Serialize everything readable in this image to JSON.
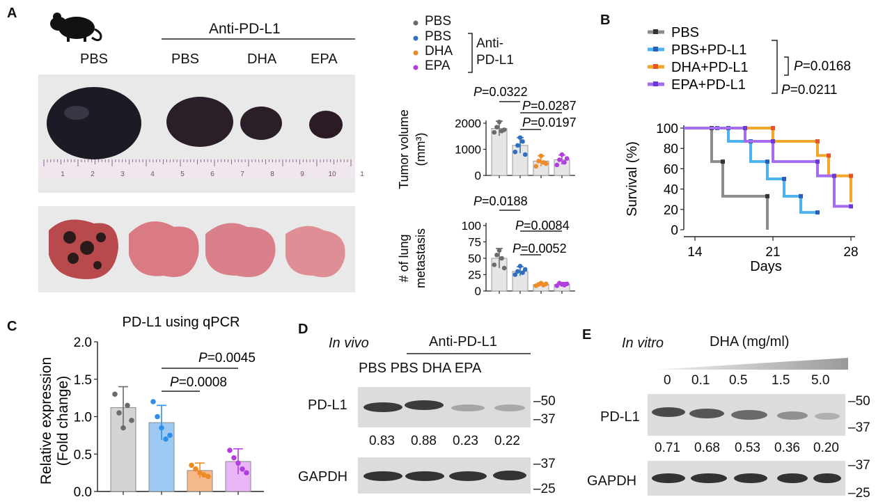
{
  "panels": {
    "a": "A",
    "b": "B",
    "c": "C",
    "d": "D",
    "e": "E"
  },
  "panelA": {
    "group_header": "Anti-PD-L1",
    "photo_labels": [
      "PBS",
      "PBS",
      "DHA",
      "EPA"
    ],
    "ruler_numbers": [
      "1",
      "2",
      "3",
      "4",
      "5",
      "6",
      "7",
      "8",
      "9",
      "10",
      "1"
    ],
    "legend": {
      "items": [
        "PBS",
        "PBS",
        "DHA",
        "EPA"
      ],
      "bracket_label_line1": "Anti-",
      "bracket_label_line2": "PD-L1"
    },
    "colors": [
      "#6b6b6b",
      "#2f6fc0",
      "#f08a24",
      "#b23ee0"
    ]
  },
  "chart_data": [
    {
      "id": "tumor-volume",
      "type": "bar",
      "categories": [
        "PBS",
        "PBS+PD-L1",
        "DHA+PD-L1",
        "EPA+PD-L1"
      ],
      "values": [
        1800,
        1150,
        550,
        600
      ],
      "errors": [
        280,
        300,
        200,
        180
      ],
      "ylabel_line1": "Tumor volume",
      "ylabel_line2": "(mm³)",
      "ylim": [
        0,
        2000
      ],
      "yticks": [
        "0",
        "1000",
        "2000"
      ],
      "points": [
        [
          1650,
          1850,
          2050,
          1700,
          1750
        ],
        [
          900,
          1150,
          1450,
          1300,
          800
        ],
        [
          350,
          550,
          750,
          500,
          450
        ],
        [
          400,
          600,
          800,
          500,
          650
        ]
      ],
      "annotations": [
        "P=0.0322",
        "P=0.0287",
        "P=0.0197"
      ]
    },
    {
      "id": "lung-metastasis",
      "type": "bar",
      "categories": [
        "PBS",
        "PBS+PD-L1",
        "DHA+PD-L1",
        "EPA+PD-L1"
      ],
      "values": [
        50,
        30,
        10,
        10
      ],
      "errors": [
        15,
        7,
        2,
        3
      ],
      "ylabel_line1": "# of lung",
      "ylabel_line2": "metastasis",
      "ylim": [
        0,
        100
      ],
      "yticks": [
        "0",
        "25",
        "50",
        "75",
        "100"
      ],
      "points": [
        [
          40,
          55,
          62,
          50,
          35
        ],
        [
          25,
          30,
          38,
          28,
          33
        ],
        [
          8,
          10,
          12,
          9,
          11
        ],
        [
          8,
          12,
          10,
          9,
          11
        ]
      ],
      "annotations": [
        "P=0.0188",
        "P=0.0084",
        "P=0.0052"
      ]
    },
    {
      "id": "survival",
      "type": "line",
      "xlabel": "Days",
      "ylabel": "Survival (%)",
      "xlim": [
        13,
        28
      ],
      "ylim": [
        0,
        100
      ],
      "xticks": [
        "14",
        "21",
        "28"
      ],
      "yticks": [
        "0",
        "20",
        "40",
        "60",
        "80",
        "100"
      ],
      "series": [
        {
          "name": "PBS",
          "color": "#8c8c8c",
          "steps": [
            [
              13,
              100
            ],
            [
              15.5,
              100
            ],
            [
              15.5,
              67
            ],
            [
              16.5,
              67
            ],
            [
              16.5,
              33
            ],
            [
              20.5,
              33
            ],
            [
              20.5,
              0
            ]
          ]
        },
        {
          "name": "PBS+PD-L1",
          "color": "#4db3f0",
          "steps": [
            [
              13,
              100
            ],
            [
              16,
              100
            ],
            [
              16,
              100
            ],
            [
              17,
              100
            ],
            [
              17,
              87
            ],
            [
              19,
              87
            ],
            [
              19,
              67
            ],
            [
              20.5,
              67
            ],
            [
              20.5,
              50
            ],
            [
              22,
              50
            ],
            [
              22,
              33
            ],
            [
              23.5,
              33
            ],
            [
              23.5,
              17
            ],
            [
              25,
              17
            ]
          ]
        },
        {
          "name": "DHA+PD-L1",
          "color": "#f2a72a",
          "steps": [
            [
              13,
              100
            ],
            [
              21,
              100
            ],
            [
              21,
              87
            ],
            [
              25,
              87
            ],
            [
              25,
              73
            ],
            [
              26,
              73
            ],
            [
              26,
              53
            ],
            [
              28,
              53
            ],
            [
              28,
              27
            ]
          ]
        },
        {
          "name": "EPA+PD-L1",
          "color": "#a56cf2",
          "steps": [
            [
              13,
              100
            ],
            [
              18.5,
              100
            ],
            [
              18.5,
              87
            ],
            [
              21,
              87
            ],
            [
              21,
              67
            ],
            [
              25,
              67
            ],
            [
              25,
              53
            ],
            [
              26.5,
              53
            ],
            [
              26.5,
              23
            ],
            [
              28,
              23
            ]
          ]
        }
      ],
      "annotations": [
        "P=0.0168",
        "P=0.0211"
      ]
    },
    {
      "id": "qpcr",
      "type": "bar",
      "title": "PD-L1 using qPCR",
      "categories": [
        "PBS",
        "PBS+PD-L1",
        "DHA+PD-L1",
        "EPA+PD-L1"
      ],
      "values": [
        1.12,
        0.92,
        0.28,
        0.4
      ],
      "errors": [
        0.28,
        0.23,
        0.1,
        0.17
      ],
      "ylabel_line1": "Relative expression",
      "ylabel_line2": "(Fold change)",
      "ylim": [
        0,
        2.0
      ],
      "yticks": [
        "0.0",
        "0.5",
        "1.0",
        "1.5",
        "2.0"
      ],
      "colors": [
        "#d4d4d4",
        "#9ccaf5",
        "#f5b98c",
        "#eab6f7"
      ],
      "dotColors": [
        "#6b6b6b",
        "#2f8ee8",
        "#f08a24",
        "#b23ee0"
      ],
      "points": [
        [
          1.3,
          1.05,
          0.85,
          1.15,
          0.95
        ],
        [
          1.2,
          1.0,
          0.85,
          0.7,
          0.75
        ],
        [
          0.35,
          0.3,
          0.25,
          0.22,
          0.2
        ],
        [
          0.55,
          0.45,
          0.38,
          0.3,
          0.25
        ]
      ],
      "annotations": [
        "P=0.0045",
        "P=0.0008"
      ]
    }
  ],
  "panelB": {
    "legend": [
      "PBS",
      "PBS+PD-L1",
      "DHA+PD-L1",
      "EPA+PD-L1"
    ]
  },
  "panelD": {
    "condition": "In vivo",
    "group_header": "Anti-PD-L1",
    "lane_labels": "PBS PBS DHA EPA",
    "row1_label": "PD-L1",
    "row2_label": "GAPDH",
    "markers_row1": [
      "–50",
      "–37"
    ],
    "markers_row2": [
      "–37",
      "–25"
    ],
    "values": [
      "0.83",
      "0.88",
      "0.23",
      "0.22"
    ]
  },
  "panelE": {
    "condition": "In vitro",
    "treatment": "DHA (mg/ml)",
    "doses": [
      "0",
      "0.1",
      "0.5",
      "1.5",
      "5.0"
    ],
    "row1_label": "PD-L1",
    "row2_label": "GAPDH",
    "markers_row1": [
      "–50",
      "–37"
    ],
    "markers_row2": [
      "–37",
      "–25"
    ],
    "values": [
      "0.71",
      "0.68",
      "0.53",
      "0.36",
      "0.20"
    ]
  }
}
